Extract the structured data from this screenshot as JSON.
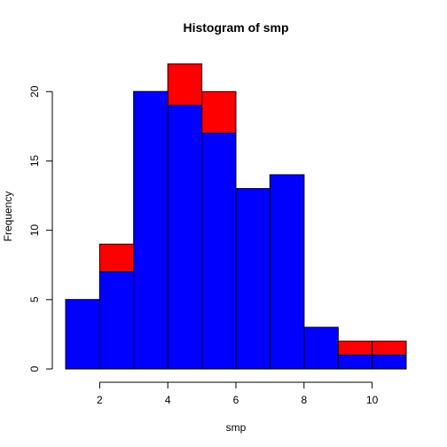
{
  "chart_data": {
    "type": "bar",
    "title": "Histogram of smp",
    "xlabel": "smp",
    "ylabel": "Frequency",
    "xlim": [
      1,
      11
    ],
    "ylim": [
      0,
      22
    ],
    "x_ticks": [
      2,
      4,
      6,
      8,
      10
    ],
    "y_ticks": [
      0,
      5,
      10,
      15,
      20
    ],
    "bin_edges": [
      1,
      2,
      3,
      4,
      5,
      6,
      7,
      8,
      9,
      10,
      11
    ],
    "series": [
      {
        "color": "#ff0000",
        "values": [
          5,
          9,
          20,
          22,
          20,
          13,
          14,
          3,
          2,
          2
        ]
      },
      {
        "color": "#0000ff",
        "values": [
          5,
          7,
          20,
          19,
          17,
          13,
          14,
          3,
          1,
          1
        ]
      }
    ],
    "grid": false,
    "legend": "none"
  }
}
